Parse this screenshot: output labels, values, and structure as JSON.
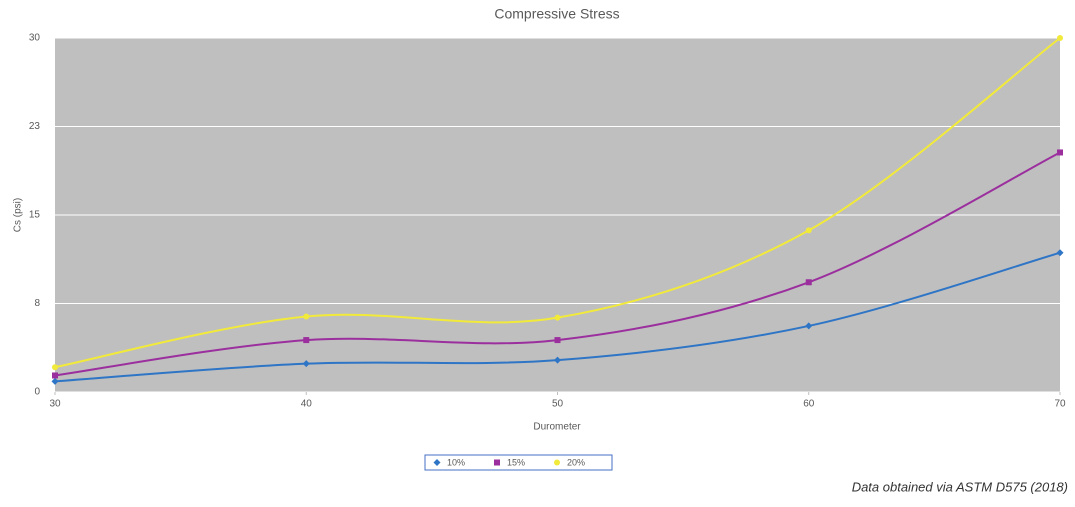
{
  "chart_data": {
    "type": "line",
    "title": "Compressive Stress",
    "x_label": "Durometer",
    "y_label": "Cs (psi)",
    "x": [
      30,
      40,
      50,
      60,
      70
    ],
    "xlim": [
      30,
      70
    ],
    "xticks": [
      30,
      40,
      50,
      60,
      70
    ],
    "ylim": [
      0,
      30
    ],
    "yticks": [
      0,
      {
        "value": 7.5,
        "label": "8"
      },
      15,
      {
        "value": 22.5,
        "label": "23"
      },
      30
    ],
    "grid": true,
    "smooth": true,
    "legend": "bottom",
    "series": [
      {
        "name": "10%",
        "color": "#2e75c6",
        "marker": "diamond",
        "values": [
          0.9,
          2.4,
          2.7,
          5.6,
          11.8
        ]
      },
      {
        "name": "15%",
        "color": "#9b2f9e",
        "marker": "square",
        "values": [
          1.4,
          4.4,
          4.4,
          9.3,
          20.3
        ]
      },
      {
        "name": "20%",
        "color": "#f2ea3a",
        "marker": "circle",
        "values": [
          2.1,
          6.4,
          6.3,
          13.7,
          30
        ]
      }
    ]
  },
  "footnote": "Data obtained via ASTM D575 (2018)"
}
